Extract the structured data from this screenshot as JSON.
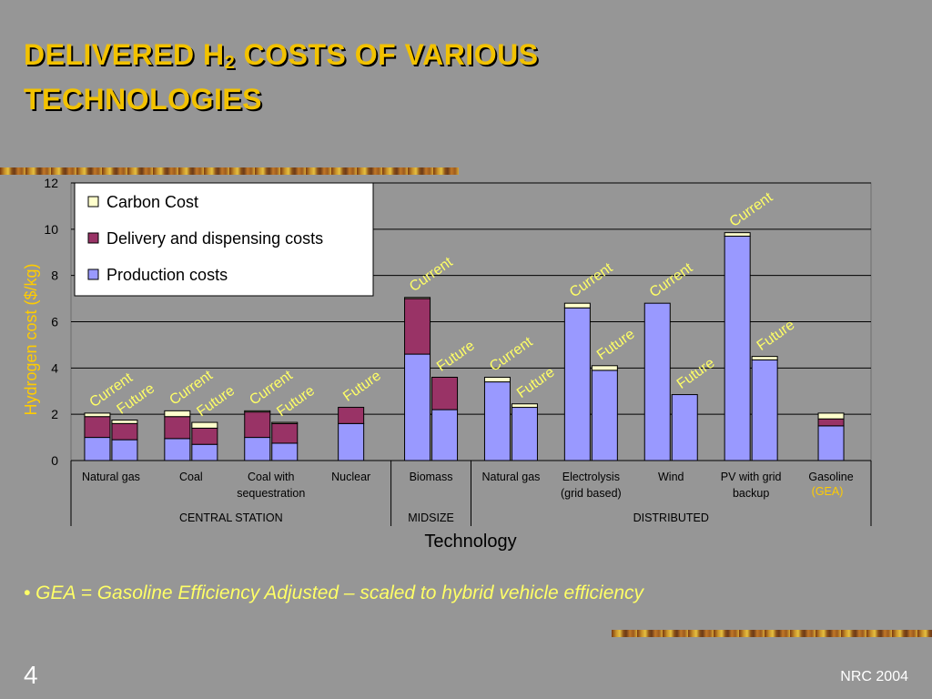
{
  "slide": {
    "title_line1_pre": "DELIVERED H",
    "title_sub": "2",
    "title_line1_post": " COSTS OF VARIOUS",
    "title_line2": "TECHNOLOGIES",
    "note": "• GEA = Gasoline Efficiency Adjusted – scaled to hybrid vehicle efficiency",
    "page_number": "4",
    "footer": "NRC 2004"
  },
  "colors": {
    "title": "#f2c200",
    "production": "#9999ff",
    "delivery": "#993366",
    "carbon": "#ffffcc",
    "current_future_label": "#ffff66",
    "ylabel": "#ffcc00",
    "gea": "#ffcc00"
  },
  "chart_data": {
    "type": "bar",
    "stacked": true,
    "ylabel": "Hydrogen cost ($/kg)",
    "xlabel": "Technology",
    "ylim": [
      0,
      12
    ],
    "yticks": [
      0,
      2,
      4,
      6,
      8,
      10,
      12
    ],
    "grid": true,
    "legend_position": "top-left",
    "series_names": [
      "Production costs",
      "Delivery and dispensing costs",
      "Carbon Cost"
    ],
    "legend": [
      "Carbon Cost",
      "Delivery and dispensing costs",
      "Production costs"
    ],
    "technologies": [
      {
        "name": "Natural gas",
        "group": "CENTRAL STATION",
        "bars": [
          {
            "label": "Current",
            "production": 1.0,
            "delivery": 0.9,
            "carbon": 0.15
          },
          {
            "label": "Future",
            "production": 0.9,
            "delivery": 0.7,
            "carbon": 0.15
          }
        ]
      },
      {
        "name": "Coal",
        "group": "CENTRAL STATION",
        "bars": [
          {
            "label": "Current",
            "production": 0.95,
            "delivery": 0.95,
            "carbon": 0.25
          },
          {
            "label": "Future",
            "production": 0.7,
            "delivery": 0.7,
            "carbon": 0.25
          }
        ]
      },
      {
        "name": "Coal with sequestration",
        "group": "CENTRAL STATION",
        "bars": [
          {
            "label": "Current",
            "production": 1.0,
            "delivery": 1.1,
            "carbon": 0.05
          },
          {
            "label": "Future",
            "production": 0.75,
            "delivery": 0.85,
            "carbon": 0.05
          }
        ]
      },
      {
        "name": "Nuclear",
        "group": "CENTRAL STATION",
        "bars": [
          {
            "label": "Future",
            "production": 1.6,
            "delivery": 0.7,
            "carbon": 0
          }
        ]
      },
      {
        "name": "Biomass",
        "group": "MIDSIZE",
        "bars": [
          {
            "label": "Current",
            "production": 4.6,
            "delivery": 2.4,
            "carbon": 0.05
          },
          {
            "label": "Future",
            "production": 2.2,
            "delivery": 1.4,
            "carbon": 0
          }
        ]
      },
      {
        "name": "Natural gas",
        "group": "DISTRIBUTED",
        "bars": [
          {
            "label": "Current",
            "production": 3.4,
            "delivery": 0,
            "carbon": 0.2
          },
          {
            "label": "Future",
            "production": 2.3,
            "delivery": 0,
            "carbon": 0.15
          }
        ]
      },
      {
        "name": "Electrolysis (grid based)",
        "group": "DISTRIBUTED",
        "bars": [
          {
            "label": "Current",
            "production": 6.6,
            "delivery": 0,
            "carbon": 0.2
          },
          {
            "label": "Future",
            "production": 3.9,
            "delivery": 0,
            "carbon": 0.2
          }
        ]
      },
      {
        "name": "Wind",
        "group": "DISTRIBUTED",
        "bars": [
          {
            "label": "Current",
            "production": 6.8,
            "delivery": 0,
            "carbon": 0
          },
          {
            "label": "Future",
            "production": 2.85,
            "delivery": 0,
            "carbon": 0
          }
        ]
      },
      {
        "name": "PV with grid backup",
        "group": "DISTRIBUTED",
        "bars": [
          {
            "label": "Current",
            "production": 9.7,
            "delivery": 0,
            "carbon": 0.15
          },
          {
            "label": "Future",
            "production": 4.35,
            "delivery": 0,
            "carbon": 0.15
          }
        ]
      },
      {
        "name": "Gasoline (GEA)",
        "group": "DISTRIBUTED",
        "bars": [
          {
            "label": "",
            "production": 1.5,
            "delivery": 0.3,
            "carbon": 0.25
          }
        ]
      }
    ],
    "category_labels": [
      {
        "lines": [
          "Natural gas"
        ]
      },
      {
        "lines": [
          "Coal"
        ]
      },
      {
        "lines": [
          "Coal with",
          "sequestration"
        ]
      },
      {
        "lines": [
          "Nuclear"
        ]
      },
      {
        "lines": [
          "Biomass"
        ]
      },
      {
        "lines": [
          "Natural gas"
        ]
      },
      {
        "lines": [
          "Electrolysis",
          "(grid based)"
        ]
      },
      {
        "lines": [
          "Wind"
        ]
      },
      {
        "lines": [
          "PV with grid",
          "backup"
        ]
      },
      {
        "lines": [
          "Gasoline"
        ],
        "extra": "(GEA)"
      }
    ],
    "groups": [
      "CENTRAL STATION",
      "MIDSIZE",
      "DISTRIBUTED"
    ]
  }
}
